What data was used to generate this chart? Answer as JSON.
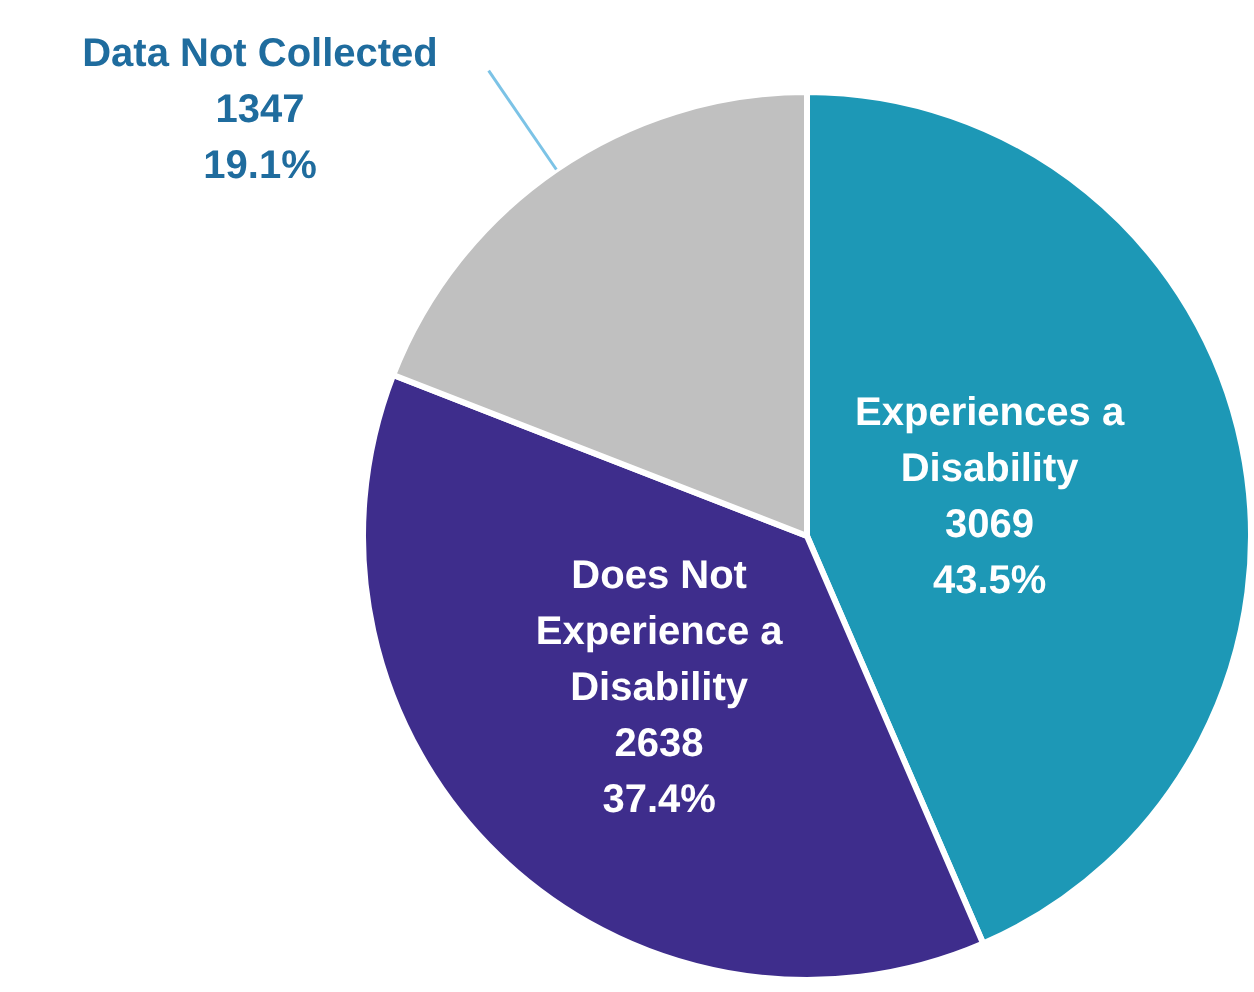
{
  "chart_data": {
    "type": "pie",
    "categories": [
      "Experiences a Disability",
      "Does Not Experience a Disability",
      "Data Not Collected"
    ],
    "values": [
      3069,
      2638,
      1347
    ],
    "value_labels": [
      "3069\n43.5%",
      "2638\n37.4%",
      "1347\n19.1%"
    ],
    "colors": [
      "#1d98b6",
      "#3e2d8c",
      "#c0c0c0"
    ],
    "legend": false
  }
}
